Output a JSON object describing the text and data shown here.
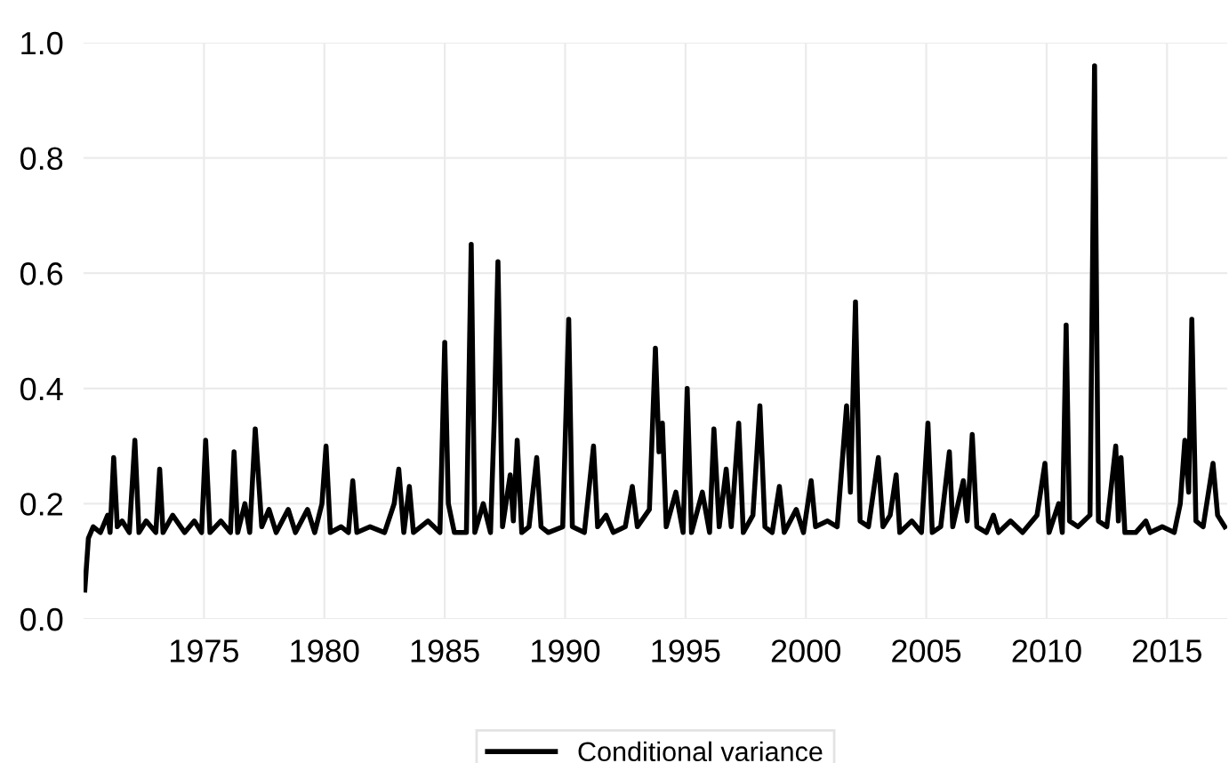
{
  "chart_data": {
    "type": "line",
    "x": [
      1970.05,
      1970.2,
      1970.4,
      1970.7,
      1971.0,
      1971.1,
      1971.25,
      1971.4,
      1971.6,
      1971.9,
      1972.13,
      1972.3,
      1972.6,
      1973.0,
      1973.16,
      1973.3,
      1973.7,
      1974.2,
      1974.6,
      1974.9,
      1975.07,
      1975.25,
      1975.7,
      1976.1,
      1976.25,
      1976.4,
      1976.7,
      1976.9,
      1977.13,
      1977.4,
      1977.7,
      1978.0,
      1978.5,
      1978.8,
      1979.3,
      1979.6,
      1979.9,
      1980.07,
      1980.25,
      1980.7,
      1981.0,
      1981.18,
      1981.35,
      1981.9,
      1982.5,
      1982.9,
      1983.09,
      1983.3,
      1983.53,
      1983.7,
      1984.3,
      1984.8,
      1985.0,
      1985.15,
      1985.4,
      1985.9,
      1986.1,
      1986.25,
      1986.6,
      1986.9,
      1987.06,
      1987.21,
      1987.4,
      1987.72,
      1987.85,
      1988.01,
      1988.2,
      1988.5,
      1988.82,
      1989.0,
      1989.3,
      1989.9,
      1990.15,
      1990.3,
      1990.8,
      1991.18,
      1991.35,
      1991.7,
      1992.0,
      1992.5,
      1992.79,
      1993.0,
      1993.5,
      1993.75,
      1993.9,
      1994.04,
      1994.2,
      1994.6,
      1994.9,
      1995.07,
      1995.25,
      1995.7,
      1996.0,
      1996.18,
      1996.4,
      1996.69,
      1996.9,
      1997.21,
      1997.4,
      1997.8,
      1998.09,
      1998.3,
      1998.6,
      1998.9,
      1999.1,
      1999.6,
      1999.9,
      2000.22,
      2000.4,
      2000.9,
      2001.3,
      2001.69,
      2001.85,
      2002.06,
      2002.25,
      2002.6,
      2003.01,
      2003.2,
      2003.5,
      2003.75,
      2003.9,
      2004.4,
      2004.8,
      2005.07,
      2005.25,
      2005.6,
      2005.96,
      2006.1,
      2006.54,
      2006.7,
      2006.91,
      2007.1,
      2007.5,
      2007.79,
      2008.0,
      2008.5,
      2009.0,
      2009.6,
      2009.93,
      2010.1,
      2010.5,
      2010.65,
      2010.81,
      2010.95,
      2011.3,
      2011.8,
      2011.99,
      2012.15,
      2012.5,
      2012.87,
      2012.98,
      2013.09,
      2013.25,
      2013.7,
      2014.12,
      2014.3,
      2014.8,
      2015.3,
      2015.55,
      2015.74,
      2015.9,
      2016.03,
      2016.2,
      2016.5,
      2016.91,
      2017.1,
      2017.4
    ],
    "series": [
      {
        "name": "Conditional variance",
        "color": "#000000",
        "values": [
          0.05,
          0.14,
          0.16,
          0.15,
          0.18,
          0.15,
          0.28,
          0.16,
          0.17,
          0.15,
          0.31,
          0.15,
          0.17,
          0.15,
          0.26,
          0.15,
          0.18,
          0.15,
          0.17,
          0.15,
          0.31,
          0.15,
          0.17,
          0.15,
          0.29,
          0.15,
          0.2,
          0.15,
          0.33,
          0.16,
          0.19,
          0.15,
          0.19,
          0.15,
          0.19,
          0.15,
          0.2,
          0.3,
          0.15,
          0.16,
          0.15,
          0.24,
          0.15,
          0.16,
          0.15,
          0.2,
          0.26,
          0.15,
          0.23,
          0.15,
          0.17,
          0.15,
          0.48,
          0.2,
          0.15,
          0.15,
          0.65,
          0.15,
          0.2,
          0.15,
          0.35,
          0.62,
          0.16,
          0.25,
          0.17,
          0.31,
          0.15,
          0.16,
          0.28,
          0.16,
          0.15,
          0.16,
          0.52,
          0.16,
          0.15,
          0.3,
          0.16,
          0.18,
          0.15,
          0.16,
          0.23,
          0.16,
          0.19,
          0.47,
          0.29,
          0.34,
          0.16,
          0.22,
          0.15,
          0.4,
          0.15,
          0.22,
          0.15,
          0.33,
          0.16,
          0.26,
          0.16,
          0.34,
          0.15,
          0.18,
          0.37,
          0.16,
          0.15,
          0.23,
          0.15,
          0.19,
          0.15,
          0.24,
          0.16,
          0.17,
          0.16,
          0.37,
          0.22,
          0.55,
          0.17,
          0.16,
          0.28,
          0.16,
          0.18,
          0.25,
          0.15,
          0.17,
          0.15,
          0.34,
          0.15,
          0.16,
          0.29,
          0.16,
          0.24,
          0.17,
          0.32,
          0.16,
          0.15,
          0.18,
          0.15,
          0.17,
          0.15,
          0.18,
          0.27,
          0.15,
          0.2,
          0.15,
          0.51,
          0.17,
          0.16,
          0.18,
          0.96,
          0.17,
          0.16,
          0.3,
          0.17,
          0.28,
          0.15,
          0.15,
          0.17,
          0.15,
          0.16,
          0.15,
          0.2,
          0.31,
          0.22,
          0.52,
          0.17,
          0.16,
          0.27,
          0.18,
          0.16
        ]
      }
    ],
    "xlim": [
      1970,
      2017.5
    ],
    "xticks": [
      1975,
      1980,
      1985,
      1990,
      1995,
      2000,
      2005,
      2010,
      2015
    ],
    "ylim": [
      0,
      1.0
    ],
    "yticks": [
      {
        "value": 0,
        "label": "0.0"
      },
      {
        "value": 0.2,
        "label": "0.2"
      },
      {
        "value": 0.4,
        "label": "0.4"
      },
      {
        "value": 0.6,
        "label": "0.6"
      },
      {
        "value": 0.8,
        "label": "0.8"
      },
      {
        "value": 1.0,
        "label": "1.0"
      }
    ],
    "grid": true,
    "legend": "bottom",
    "line_style": "solid"
  }
}
